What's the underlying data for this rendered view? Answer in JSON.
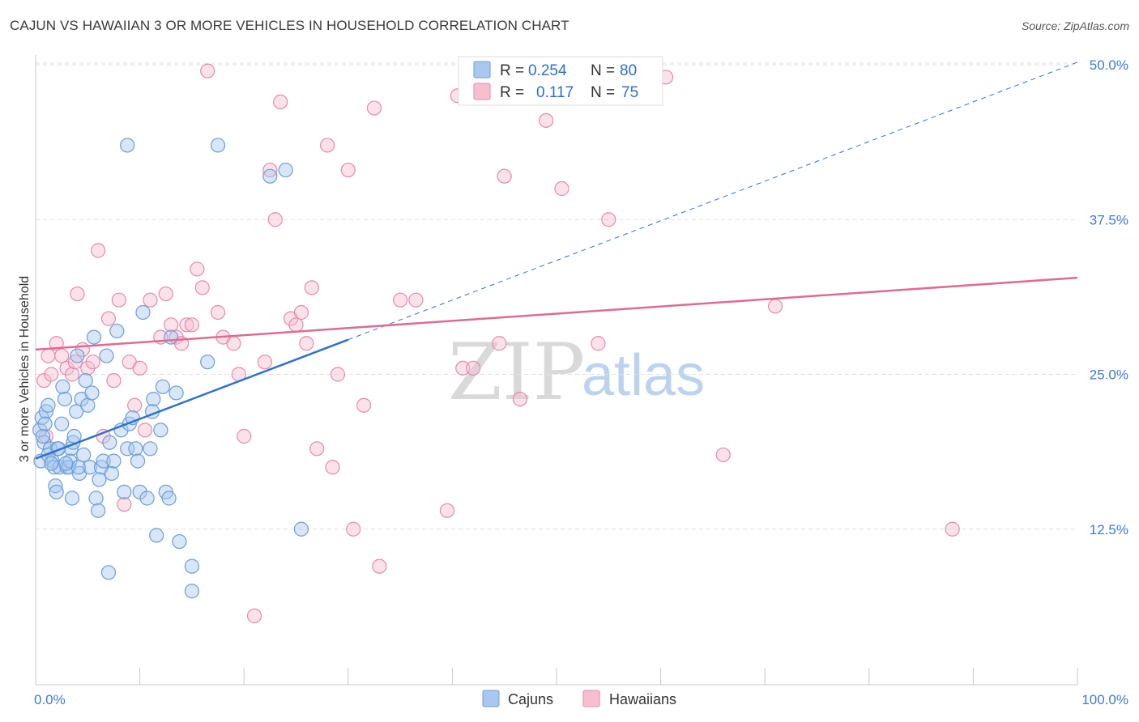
{
  "title": "CAJUN VS HAWAIIAN 3 OR MORE VEHICLES IN HOUSEHOLD CORRELATION CHART",
  "source": "Source: ZipAtlas.com",
  "watermark": {
    "zip": "ZIP",
    "atlas": "atlas"
  },
  "colors": {
    "cajun_fill": "#a9c8f0",
    "cajun_stroke": "#6a9ed8",
    "cajun_line": "#2f72cc",
    "hawaiian_fill": "#f6bfd0",
    "hawaiian_stroke": "#e68aa8",
    "hawaiian_line": "#e06a93",
    "grid": "#e2e2e2",
    "tick_label": "#3d7bd0"
  },
  "legend": {
    "rows": [
      {
        "r_label": "R =",
        "r_value": "0.254",
        "n_label": "N =",
        "n_value": "80"
      },
      {
        "r_label": "R =",
        "r_value": "0.117",
        "n_label": "N =",
        "n_value": "75"
      }
    ]
  },
  "bottom_legend": [
    "Cajuns",
    "Hawaiians"
  ],
  "chart_data": {
    "type": "scatter",
    "title": "CAJUN VS HAWAIIAN 3 OR MORE VEHICLES IN HOUSEHOLD CORRELATION CHART",
    "xlabel": "",
    "ylabel": "3 or more Vehicles in Household",
    "xlim": [
      0,
      100
    ],
    "ylim": [
      0,
      52
    ],
    "x_tick_labels": [
      "0.0%",
      "100.0%"
    ],
    "y_ticks": [
      12.5,
      25.0,
      37.5,
      50.0
    ],
    "y_tick_labels": [
      "12.5%",
      "25.0%",
      "37.5%",
      "50.0%"
    ],
    "legend_position": "top-center",
    "series": [
      {
        "name": "Cajuns",
        "R": 0.254,
        "N": 80,
        "trend": {
          "x0": 0,
          "y0": 18.2,
          "x1": 30,
          "y1": 27.8,
          "dashed_to_x": 100,
          "dashed_to_y": 50.2
        },
        "points": [
          [
            0.5,
            18.0
          ],
          [
            0.4,
            20.5
          ],
          [
            0.6,
            21.5
          ],
          [
            0.8,
            19.5
          ],
          [
            1.0,
            22.0
          ],
          [
            1.2,
            22.5
          ],
          [
            1.4,
            19.0
          ],
          [
            1.6,
            18.0
          ],
          [
            1.8,
            17.5
          ],
          [
            1.9,
            16.0
          ],
          [
            2.0,
            15.5
          ],
          [
            2.1,
            19.0
          ],
          [
            2.3,
            17.5
          ],
          [
            2.5,
            21.0
          ],
          [
            2.6,
            24.0
          ],
          [
            2.8,
            23.0
          ],
          [
            3.0,
            17.5
          ],
          [
            3.2,
            17.5
          ],
          [
            3.4,
            19.0
          ],
          [
            3.5,
            15.0
          ],
          [
            3.6,
            19.5
          ],
          [
            3.7,
            20.0
          ],
          [
            3.9,
            22.0
          ],
          [
            4.0,
            26.5
          ],
          [
            4.2,
            17.0
          ],
          [
            4.4,
            23.0
          ],
          [
            4.6,
            18.5
          ],
          [
            4.8,
            24.5
          ],
          [
            5.0,
            22.5
          ],
          [
            5.2,
            17.5
          ],
          [
            5.4,
            23.5
          ],
          [
            5.6,
            28.0
          ],
          [
            5.8,
            15.0
          ],
          [
            6.0,
            14.0
          ],
          [
            6.3,
            17.5
          ],
          [
            6.5,
            18.0
          ],
          [
            6.8,
            26.5
          ],
          [
            7.0,
            9.0
          ],
          [
            7.3,
            17.0
          ],
          [
            7.5,
            18.0
          ],
          [
            7.8,
            28.5
          ],
          [
            8.2,
            20.5
          ],
          [
            8.5,
            15.5
          ],
          [
            8.8,
            19.0
          ],
          [
            9.0,
            21.0
          ],
          [
            9.3,
            21.5
          ],
          [
            9.6,
            19.0
          ],
          [
            10.0,
            15.5
          ],
          [
            10.3,
            30.0
          ],
          [
            10.7,
            15.0
          ],
          [
            11.0,
            19.0
          ],
          [
            11.3,
            23.0
          ],
          [
            11.6,
            12.0
          ],
          [
            12.0,
            20.5
          ],
          [
            12.2,
            24.0
          ],
          [
            12.5,
            15.5
          ],
          [
            12.8,
            15.0
          ],
          [
            13.0,
            28.0
          ],
          [
            13.5,
            23.5
          ],
          [
            13.8,
            11.5
          ],
          [
            15.0,
            9.5
          ],
          [
            15.0,
            7.5
          ],
          [
            16.5,
            26.0
          ],
          [
            17.5,
            43.5
          ],
          [
            8.8,
            43.5
          ],
          [
            22.5,
            41.0
          ],
          [
            24.0,
            41.5
          ],
          [
            25.5,
            12.5
          ],
          [
            1.2,
            18.5
          ],
          [
            0.7,
            20.0
          ],
          [
            2.2,
            19.0
          ],
          [
            3.3,
            18.0
          ],
          [
            4.1,
            17.5
          ],
          [
            6.1,
            16.5
          ],
          [
            7.1,
            19.5
          ],
          [
            9.8,
            18.0
          ],
          [
            11.2,
            22.0
          ],
          [
            1.5,
            17.8
          ],
          [
            0.9,
            21.0
          ],
          [
            2.9,
            17.8
          ]
        ]
      },
      {
        "name": "Hawaiians",
        "R": 0.117,
        "N": 75,
        "trend": {
          "x0": 0,
          "y0": 27.0,
          "x1": 100,
          "y1": 32.8
        },
        "points": [
          [
            0.8,
            24.5
          ],
          [
            1.2,
            26.5
          ],
          [
            1.5,
            25.0
          ],
          [
            2.0,
            27.5
          ],
          [
            2.5,
            26.5
          ],
          [
            3.0,
            25.5
          ],
          [
            3.5,
            25.0
          ],
          [
            4.0,
            31.5
          ],
          [
            4.5,
            27.0
          ],
          [
            5.0,
            25.5
          ],
          [
            5.5,
            26.0
          ],
          [
            6.0,
            35.0
          ],
          [
            6.5,
            20.0
          ],
          [
            7.0,
            29.5
          ],
          [
            7.5,
            24.5
          ],
          [
            8.0,
            31.0
          ],
          [
            8.5,
            14.5
          ],
          [
            9.0,
            26.0
          ],
          [
            9.5,
            22.5
          ],
          [
            10.0,
            25.5
          ],
          [
            10.5,
            20.5
          ],
          [
            11.0,
            31.0
          ],
          [
            12.0,
            28.0
          ],
          [
            12.5,
            31.5
          ],
          [
            13.0,
            29.0
          ],
          [
            13.5,
            28.0
          ],
          [
            14.0,
            27.5
          ],
          [
            14.5,
            29.0
          ],
          [
            15.0,
            29.0
          ],
          [
            15.5,
            33.5
          ],
          [
            16.0,
            32.0
          ],
          [
            16.5,
            49.5
          ],
          [
            17.5,
            30.0
          ],
          [
            18.0,
            28.0
          ],
          [
            19.0,
            27.5
          ],
          [
            19.5,
            25.0
          ],
          [
            20.0,
            20.0
          ],
          [
            21.0,
            5.5
          ],
          [
            22.0,
            26.0
          ],
          [
            22.5,
            41.5
          ],
          [
            23.0,
            37.5
          ],
          [
            23.5,
            47.0
          ],
          [
            24.5,
            29.5
          ],
          [
            25.0,
            29.0
          ],
          [
            25.5,
            30.0
          ],
          [
            26.0,
            27.5
          ],
          [
            26.5,
            32.0
          ],
          [
            27.0,
            19.0
          ],
          [
            28.0,
            43.5
          ],
          [
            28.5,
            17.5
          ],
          [
            29.0,
            25.0
          ],
          [
            30.0,
            41.5
          ],
          [
            30.5,
            12.5
          ],
          [
            31.5,
            22.5
          ],
          [
            32.5,
            46.5
          ],
          [
            33.0,
            9.5
          ],
          [
            35.0,
            31.0
          ],
          [
            36.5,
            31.0
          ],
          [
            39.5,
            14.0
          ],
          [
            40.5,
            47.5
          ],
          [
            41.0,
            25.5
          ],
          [
            42.0,
            25.5
          ],
          [
            45.0,
            41.0
          ],
          [
            46.5,
            23.0
          ],
          [
            49.0,
            45.5
          ],
          [
            50.5,
            40.0
          ],
          [
            54.0,
            27.5
          ],
          [
            55.0,
            37.5
          ],
          [
            60.5,
            49.0
          ],
          [
            66.0,
            18.5
          ],
          [
            71.0,
            30.5
          ],
          [
            88.0,
            12.5
          ],
          [
            1.0,
            20.0
          ],
          [
            3.8,
            26.0
          ],
          [
            44.5,
            27.5
          ]
        ]
      }
    ]
  }
}
